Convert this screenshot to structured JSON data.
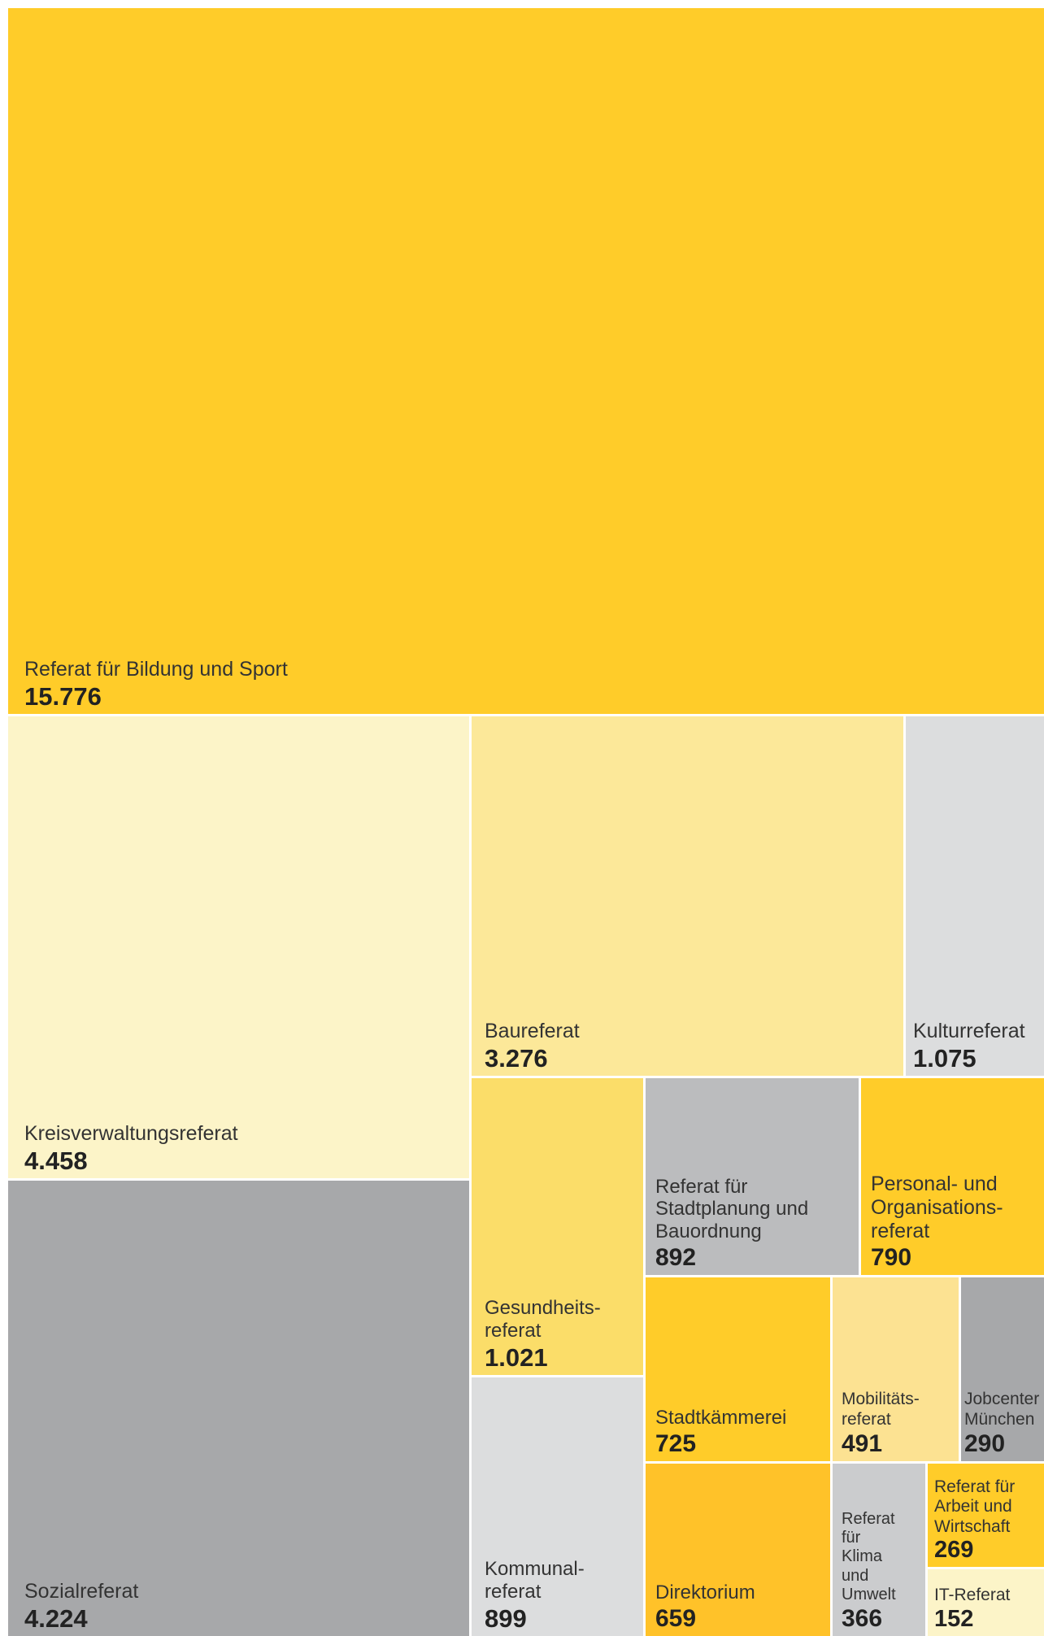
{
  "chart_data": {
    "type": "treemap",
    "items": [
      {
        "label": "Referat für Bildung und Sport",
        "value_text": "15.776",
        "value": 15776,
        "color": "#FFCC29"
      },
      {
        "label": "Kreisverwaltungsreferat",
        "value_text": "4.458",
        "value": 4458,
        "color": "#FCF4C8"
      },
      {
        "label": "Sozialreferat",
        "value_text": "4.224",
        "value": 4224,
        "color": "#A7A8AA"
      },
      {
        "label": "Baureferat",
        "value_text": "3.276",
        "value": 3276,
        "color": "#FCE899"
      },
      {
        "label": "Kulturreferat",
        "value_text": "1.075",
        "value": 1075,
        "color": "#DCDDDE"
      },
      {
        "label": "Gesundheits-\nreferat",
        "value_text": "1.021",
        "value": 1021,
        "color": "#FBDD69"
      },
      {
        "label": "Referat für\nStadtplanung und\nBauordnung",
        "value_text": "892",
        "value": 892,
        "color": "#BBBCBE"
      },
      {
        "label": "Personal- und\nOrganisations-\nreferat",
        "value_text": "790",
        "value": 790,
        "color": "#FFCC29"
      },
      {
        "label": "Kommunal-\nreferat",
        "value_text": "899",
        "value": 899,
        "color": "#DCDDDE"
      },
      {
        "label": "Stadtkämmerei",
        "value_text": "725",
        "value": 725,
        "color": "#FFCC29"
      },
      {
        "label": "Mobilitäts-\nreferat",
        "value_text": "491",
        "value": 491,
        "color": "#FCE292"
      },
      {
        "label": "Jobcenter\nMünchen",
        "value_text": "290",
        "value": 290,
        "color": "#A7A8AA"
      },
      {
        "label": "Direktorium",
        "value_text": "659",
        "value": 659,
        "color": "#FFC229"
      },
      {
        "label": "Referat\nfür\nKlima\nund\nUmwelt",
        "value_text": "366",
        "value": 366,
        "color": "#CBCCCE"
      },
      {
        "label": "Referat für\nArbeit und\nWirtschaft",
        "value_text": "269",
        "value": 269,
        "color": "#FFCC29"
      },
      {
        "label": "IT-Referat",
        "value_text": "152",
        "value": 152,
        "color": "#FCF4C8"
      }
    ]
  }
}
